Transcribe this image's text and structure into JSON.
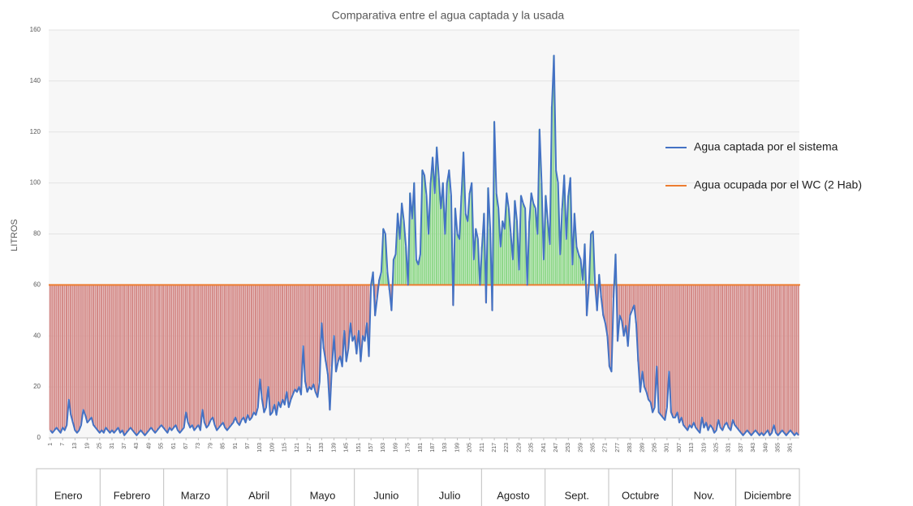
{
  "chart_data": {
    "type": "line",
    "title": "Comparativa  entre el agua captada  y la usada",
    "y_label": "LITROS",
    "ylim": [
      0,
      160
    ],
    "yticks": [
      0,
      20,
      40,
      60,
      80,
      100,
      120,
      140,
      160
    ],
    "grid": true,
    "xlim": [
      1,
      365
    ],
    "xticks": [
      1,
      7,
      13,
      19,
      25,
      31,
      37,
      43,
      49,
      55,
      61,
      67,
      73,
      79,
      85,
      91,
      97,
      103,
      109,
      115,
      121,
      127,
      133,
      139,
      145,
      151,
      157,
      163,
      169,
      175,
      181,
      187,
      193,
      199,
      205,
      211,
      217,
      223,
      229,
      235,
      241,
      247,
      253,
      259,
      265,
      271,
      277,
      283,
      289,
      295,
      301,
      307,
      313,
      319,
      325,
      331,
      337,
      343,
      349,
      355,
      361
    ],
    "months": [
      "Enero",
      "Febrero",
      "Marzo",
      "Abril",
      "Mayo",
      "Junio",
      "Julio",
      "Agosto",
      "Sept.",
      "Octubre",
      "Nov.",
      "Diciembre"
    ],
    "legend": "right",
    "below_color": "#d48a88",
    "above_color": "#8fd88a",
    "x": [
      1,
      2,
      3,
      4,
      5,
      6,
      7,
      8,
      9,
      10,
      11,
      12,
      13,
      14,
      15,
      16,
      17,
      18,
      19,
      20,
      21,
      22,
      23,
      24,
      25,
      26,
      27,
      28,
      29,
      30,
      31,
      32,
      33,
      34,
      35,
      36,
      37,
      38,
      39,
      40,
      41,
      42,
      43,
      44,
      45,
      46,
      47,
      48,
      49,
      50,
      51,
      52,
      53,
      54,
      55,
      56,
      57,
      58,
      59,
      60,
      61,
      62,
      63,
      64,
      65,
      66,
      67,
      68,
      69,
      70,
      71,
      72,
      73,
      74,
      75,
      76,
      77,
      78,
      79,
      80,
      81,
      82,
      83,
      84,
      85,
      86,
      87,
      88,
      89,
      90,
      91,
      92,
      93,
      94,
      95,
      96,
      97,
      98,
      99,
      100,
      101,
      102,
      103,
      104,
      105,
      106,
      107,
      108,
      109,
      110,
      111,
      112,
      113,
      114,
      115,
      116,
      117,
      118,
      119,
      120,
      121,
      122,
      123,
      124,
      125,
      126,
      127,
      128,
      129,
      130,
      131,
      132,
      133,
      134,
      135,
      136,
      137,
      138,
      139,
      140,
      141,
      142,
      143,
      144,
      145,
      146,
      147,
      148,
      149,
      150,
      151,
      152,
      153,
      154,
      155,
      156,
      157,
      158,
      159,
      160,
      161,
      162,
      163,
      164,
      165,
      166,
      167,
      168,
      169,
      170,
      171,
      172,
      173,
      174,
      175,
      176,
      177,
      178,
      179,
      180,
      181,
      182,
      183,
      184,
      185,
      186,
      187,
      188,
      189,
      190,
      191,
      192,
      193,
      194,
      195,
      196,
      197,
      198,
      199,
      200,
      201,
      202,
      203,
      204,
      205,
      206,
      207,
      208,
      209,
      210,
      211,
      212,
      213,
      214,
      215,
      216,
      217,
      218,
      219,
      220,
      221,
      222,
      223,
      224,
      225,
      226,
      227,
      228,
      229,
      230,
      231,
      232,
      233,
      234,
      235,
      236,
      237,
      238,
      239,
      240,
      241,
      242,
      243,
      244,
      245,
      246,
      247,
      248,
      249,
      250,
      251,
      252,
      253,
      254,
      255,
      256,
      257,
      258,
      259,
      260,
      261,
      262,
      263,
      264,
      265,
      266,
      267,
      268,
      269,
      270,
      271,
      272,
      273,
      274,
      275,
      276,
      277,
      278,
      279,
      280,
      281,
      282,
      283,
      284,
      285,
      286,
      287,
      288,
      289,
      290,
      291,
      292,
      293,
      294,
      295,
      296,
      297,
      298,
      299,
      300,
      301,
      302,
      303,
      304,
      305,
      306,
      307,
      308,
      309,
      310,
      311,
      312,
      313,
      314,
      315,
      316,
      317,
      318,
      319,
      320,
      321,
      322,
      323,
      324,
      325,
      326,
      327,
      328,
      329,
      330,
      331,
      332,
      333,
      334,
      335,
      336,
      337,
      338,
      339,
      340,
      341,
      342,
      343,
      344,
      345,
      346,
      347,
      348,
      349,
      350,
      351,
      352,
      353,
      354,
      355,
      356,
      357,
      358,
      359,
      360,
      361,
      362,
      363,
      364,
      365
    ],
    "series": [
      {
        "name": "Agua captada por el sistema",
        "color": "#4472c4",
        "values": [
          3,
          2,
          3,
          4,
          3,
          2,
          4,
          3,
          5,
          15,
          9,
          6,
          3,
          2,
          3,
          5,
          11,
          9,
          6,
          7,
          8,
          5,
          4,
          3,
          2,
          3,
          2,
          4,
          3,
          2,
          3,
          2,
          3,
          4,
          2,
          3,
          1,
          2,
          3,
          4,
          3,
          2,
          1,
          2,
          3,
          2,
          1,
          2,
          3,
          4,
          3,
          2,
          3,
          4,
          5,
          4,
          3,
          2,
          4,
          3,
          4,
          5,
          3,
          2,
          3,
          4,
          10,
          6,
          4,
          5,
          3,
          4,
          5,
          3,
          11,
          6,
          4,
          5,
          7,
          8,
          5,
          3,
          4,
          5,
          6,
          4,
          3,
          4,
          5,
          6,
          8,
          6,
          5,
          7,
          8,
          6,
          9,
          7,
          8,
          10,
          9,
          12,
          23,
          15,
          10,
          12,
          20,
          9,
          10,
          13,
          9,
          14,
          12,
          15,
          13,
          18,
          12,
          15,
          17,
          19,
          18,
          20,
          17,
          36,
          22,
          18,
          20,
          19,
          21,
          18,
          16,
          22,
          45,
          35,
          30,
          25,
          11,
          28,
          40,
          26,
          30,
          32,
          28,
          42,
          30,
          35,
          45,
          38,
          40,
          33,
          42,
          30,
          40,
          38,
          45,
          32,
          60,
          65,
          48,
          55,
          62,
          65,
          82,
          80,
          65,
          58,
          50,
          70,
          72,
          88,
          78,
          92,
          85,
          75,
          60,
          96,
          86,
          100,
          70,
          68,
          72,
          105,
          103,
          95,
          80,
          100,
          110,
          96,
          114,
          102,
          90,
          100,
          80,
          100,
          105,
          95,
          52,
          90,
          80,
          78,
          95,
          112,
          88,
          85,
          96,
          100,
          70,
          82,
          78,
          60,
          75,
          88,
          53,
          98,
          82,
          50,
          124,
          96,
          90,
          75,
          85,
          82,
          96,
          90,
          80,
          70,
          93,
          85,
          66,
          95,
          92,
          90,
          60,
          85,
          96,
          92,
          90,
          80,
          121,
          100,
          70,
          95,
          85,
          76,
          130,
          150,
          105,
          100,
          72,
          90,
          103,
          78,
          95,
          102,
          68,
          88,
          75,
          72,
          70,
          62,
          76,
          48,
          60,
          80,
          81,
          60,
          50,
          64,
          55,
          48,
          45,
          40,
          28,
          26,
          55,
          72,
          38,
          48,
          46,
          40,
          44,
          36,
          48,
          50,
          52,
          45,
          30,
          18,
          26,
          20,
          18,
          15,
          14,
          10,
          12,
          28,
          10,
          9,
          8,
          7,
          12,
          26,
          10,
          8,
          8,
          10,
          6,
          8,
          5,
          4,
          3,
          5,
          4,
          6,
          4,
          3,
          2,
          8,
          4,
          6,
          3,
          5,
          4,
          2,
          3,
          7,
          4,
          3,
          5,
          6,
          4,
          3,
          7,
          5,
          4,
          3,
          2,
          1,
          2,
          3,
          2,
          1,
          2,
          3,
          2,
          1,
          2,
          1,
          2,
          3,
          1,
          2,
          5,
          2,
          1,
          2,
          3,
          2,
          1,
          2,
          3,
          2,
          1,
          2,
          1
        ]
      },
      {
        "name": "Agua ocupada por el WC (2 Hab)",
        "color": "#ed7d31",
        "value": 60
      }
    ]
  }
}
